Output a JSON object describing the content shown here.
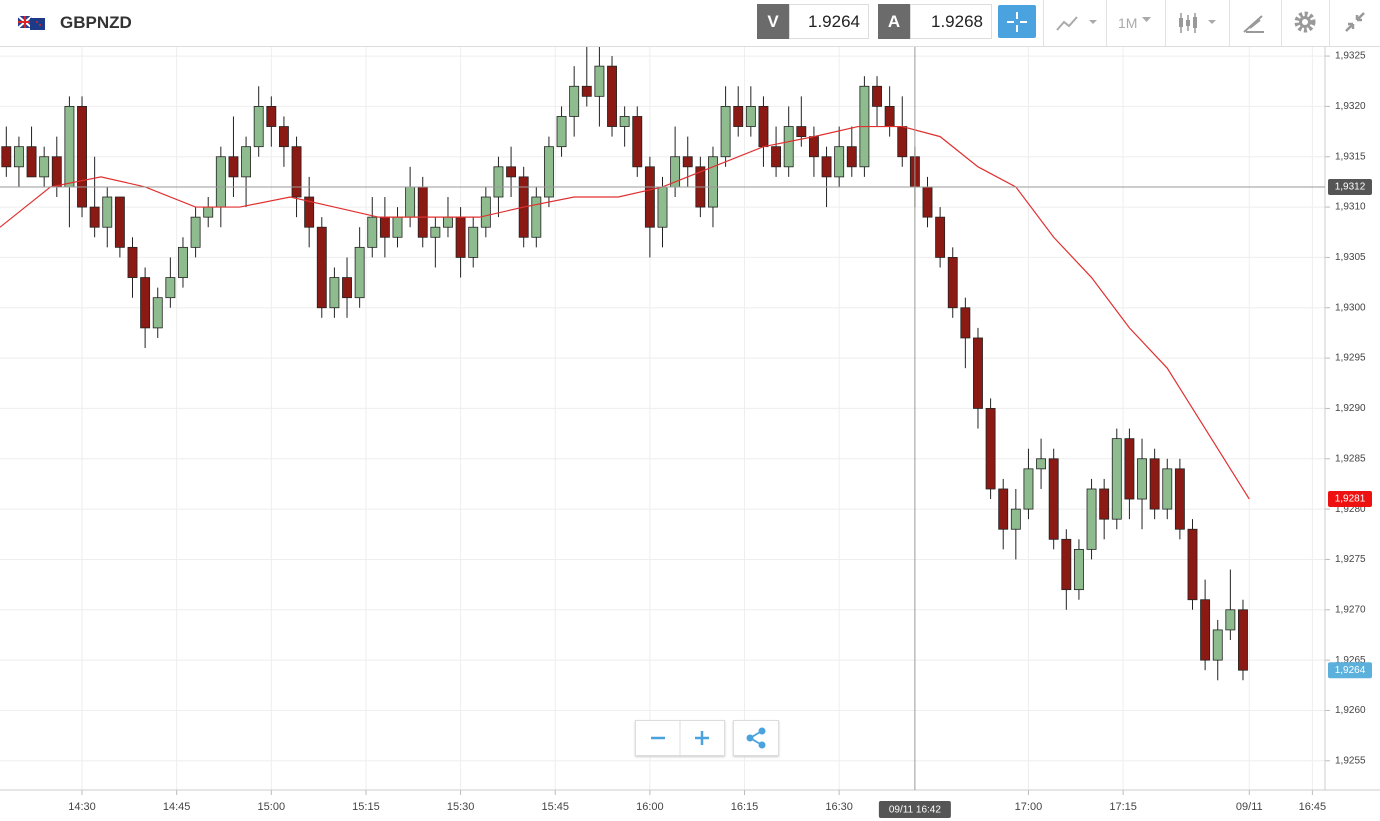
{
  "header": {
    "symbol": "GBPNZD",
    "sell_label": "V",
    "sell_price": "1.9264",
    "buy_label": "A",
    "buy_price": "1.9268",
    "timeframe": "1M"
  },
  "chart_data": {
    "type": "candlestick",
    "up_color": "#8fbc8f",
    "down_color": "#8b1a14",
    "x": [
      "14:18",
      "14:20",
      "14:22",
      "14:24",
      "14:26",
      "14:28",
      "14:30",
      "14:32",
      "14:34",
      "14:36",
      "14:38",
      "14:40",
      "14:42",
      "14:44",
      "14:46",
      "14:48",
      "14:50",
      "14:52",
      "14:54",
      "14:56",
      "14:58",
      "15:00",
      "15:02",
      "15:04",
      "15:06",
      "15:08",
      "15:10",
      "15:12",
      "15:14",
      "15:16",
      "15:18",
      "15:20",
      "15:22",
      "15:24",
      "15:26",
      "15:28",
      "15:30",
      "15:32",
      "15:34",
      "15:36",
      "15:38",
      "15:40",
      "15:42",
      "15:44",
      "15:46",
      "15:48",
      "15:50",
      "15:52",
      "15:54",
      "15:56",
      "15:58",
      "16:00",
      "16:02",
      "16:04",
      "16:06",
      "16:08",
      "16:10",
      "16:12",
      "16:14",
      "16:16",
      "16:18",
      "16:20",
      "16:22",
      "16:24",
      "16:26",
      "16:28",
      "16:30",
      "16:32",
      "16:34",
      "16:36",
      "16:38",
      "16:40",
      "16:42",
      "16:44",
      "16:46",
      "16:48",
      "16:50",
      "16:52",
      "16:54",
      "16:56",
      "16:58",
      "17:00",
      "17:02",
      "17:04",
      "17:06",
      "17:08",
      "17:10",
      "17:12",
      "17:14",
      "17:16",
      "17:18",
      "17:20",
      "17:22",
      "17:24",
      "17:26",
      "17:28",
      "17:30",
      "17:32",
      "17:34"
    ],
    "ohlc": [
      [
        1.9316,
        1.9318,
        1.9313,
        1.9314
      ],
      [
        1.9314,
        1.9317,
        1.9312,
        1.9316
      ],
      [
        1.9316,
        1.9318,
        1.9313,
        1.9313
      ],
      [
        1.9313,
        1.9316,
        1.9312,
        1.9315
      ],
      [
        1.9315,
        1.9317,
        1.9311,
        1.9312
      ],
      [
        1.9312,
        1.9321,
        1.9308,
        1.932
      ],
      [
        1.932,
        1.9321,
        1.9309,
        1.931
      ],
      [
        1.931,
        1.9315,
        1.9307,
        1.9308
      ],
      [
        1.9308,
        1.9312,
        1.9306,
        1.9311
      ],
      [
        1.9311,
        1.9311,
        1.9305,
        1.9306
      ],
      [
        1.9306,
        1.9307,
        1.9301,
        1.9303
      ],
      [
        1.9303,
        1.9304,
        1.9296,
        1.9298
      ],
      [
        1.9298,
        1.9302,
        1.9297,
        1.9301
      ],
      [
        1.9301,
        1.9305,
        1.93,
        1.9303
      ],
      [
        1.9303,
        1.9307,
        1.9302,
        1.9306
      ],
      [
        1.9306,
        1.931,
        1.9305,
        1.9309
      ],
      [
        1.9309,
        1.9311,
        1.9308,
        1.931
      ],
      [
        1.931,
        1.9316,
        1.9308,
        1.9315
      ],
      [
        1.9315,
        1.9319,
        1.9311,
        1.9313
      ],
      [
        1.9313,
        1.9317,
        1.931,
        1.9316
      ],
      [
        1.9316,
        1.9322,
        1.9315,
        1.932
      ],
      [
        1.932,
        1.9321,
        1.9316,
        1.9318
      ],
      [
        1.9318,
        1.9319,
        1.9314,
        1.9316
      ],
      [
        1.9316,
        1.9317,
        1.9309,
        1.9311
      ],
      [
        1.9311,
        1.9313,
        1.9306,
        1.9308
      ],
      [
        1.9308,
        1.9309,
        1.9299,
        1.93
      ],
      [
        1.93,
        1.9304,
        1.9299,
        1.9303
      ],
      [
        1.9303,
        1.9305,
        1.9299,
        1.9301
      ],
      [
        1.9301,
        1.9308,
        1.93,
        1.9306
      ],
      [
        1.9306,
        1.9311,
        1.9305,
        1.9309
      ],
      [
        1.9309,
        1.9311,
        1.9305,
        1.9307
      ],
      [
        1.9307,
        1.931,
        1.9306,
        1.9309
      ],
      [
        1.9309,
        1.9314,
        1.9308,
        1.9312
      ],
      [
        1.9312,
        1.9313,
        1.9306,
        1.9307
      ],
      [
        1.9307,
        1.9309,
        1.9304,
        1.9308
      ],
      [
        1.9308,
        1.9311,
        1.9307,
        1.9309
      ],
      [
        1.9309,
        1.931,
        1.9303,
        1.9305
      ],
      [
        1.9305,
        1.9309,
        1.9304,
        1.9308
      ],
      [
        1.9308,
        1.9312,
        1.9307,
        1.9311
      ],
      [
        1.9311,
        1.9315,
        1.9309,
        1.9314
      ],
      [
        1.9314,
        1.9316,
        1.9311,
        1.9313
      ],
      [
        1.9313,
        1.9314,
        1.9306,
        1.9307
      ],
      [
        1.9307,
        1.9312,
        1.9306,
        1.9311
      ],
      [
        1.9311,
        1.9317,
        1.931,
        1.9316
      ],
      [
        1.9316,
        1.932,
        1.9315,
        1.9319
      ],
      [
        1.9319,
        1.9324,
        1.9317,
        1.9322
      ],
      [
        1.9322,
        1.9326,
        1.932,
        1.9321
      ],
      [
        1.9321,
        1.9326,
        1.9318,
        1.9324
      ],
      [
        1.9324,
        1.9325,
        1.9317,
        1.9318
      ],
      [
        1.9318,
        1.932,
        1.9316,
        1.9319
      ],
      [
        1.9319,
        1.932,
        1.9313,
        1.9314
      ],
      [
        1.9314,
        1.9315,
        1.9305,
        1.9308
      ],
      [
        1.9308,
        1.9313,
        1.9306,
        1.9312
      ],
      [
        1.9312,
        1.9318,
        1.9311,
        1.9315
      ],
      [
        1.9315,
        1.9317,
        1.9312,
        1.9314
      ],
      [
        1.9314,
        1.9315,
        1.9309,
        1.931
      ],
      [
        1.931,
        1.9316,
        1.9308,
        1.9315
      ],
      [
        1.9315,
        1.9322,
        1.9314,
        1.932
      ],
      [
        1.932,
        1.9322,
        1.9317,
        1.9318
      ],
      [
        1.9318,
        1.9322,
        1.9317,
        1.932
      ],
      [
        1.932,
        1.9321,
        1.9314,
        1.9316
      ],
      [
        1.9316,
        1.9318,
        1.9313,
        1.9314
      ],
      [
        1.9314,
        1.932,
        1.9313,
        1.9318
      ],
      [
        1.9318,
        1.9321,
        1.9316,
        1.9317
      ],
      [
        1.9317,
        1.9318,
        1.9313,
        1.9315
      ],
      [
        1.9315,
        1.9316,
        1.931,
        1.9313
      ],
      [
        1.9313,
        1.9318,
        1.9312,
        1.9316
      ],
      [
        1.9316,
        1.9318,
        1.9313,
        1.9314
      ],
      [
        1.9314,
        1.9323,
        1.9313,
        1.9322
      ],
      [
        1.9322,
        1.9323,
        1.9318,
        1.932
      ],
      [
        1.932,
        1.9322,
        1.9317,
        1.9318
      ],
      [
        1.9318,
        1.9321,
        1.9314,
        1.9315
      ],
      [
        1.9315,
        1.9316,
        1.931,
        1.9312
      ],
      [
        1.9312,
        1.9313,
        1.9308,
        1.9309
      ],
      [
        1.9309,
        1.931,
        1.9304,
        1.9305
      ],
      [
        1.9305,
        1.9306,
        1.9299,
        1.93
      ],
      [
        1.93,
        1.9301,
        1.9294,
        1.9297
      ],
      [
        1.9297,
        1.9298,
        1.9288,
        1.929
      ],
      [
        1.929,
        1.9291,
        1.9281,
        1.9282
      ],
      [
        1.9282,
        1.9283,
        1.9276,
        1.9278
      ],
      [
        1.9278,
        1.9282,
        1.9275,
        1.928
      ],
      [
        1.928,
        1.9286,
        1.9279,
        1.9284
      ],
      [
        1.9284,
        1.9287,
        1.9282,
        1.9285
      ],
      [
        1.9285,
        1.9286,
        1.9276,
        1.9277
      ],
      [
        1.9277,
        1.9278,
        1.927,
        1.9272
      ],
      [
        1.9272,
        1.9277,
        1.9271,
        1.9276
      ],
      [
        1.9276,
        1.9283,
        1.9275,
        1.9282
      ],
      [
        1.9282,
        1.9283,
        1.9277,
        1.9279
      ],
      [
        1.9279,
        1.9288,
        1.9278,
        1.9287
      ],
      [
        1.9287,
        1.9288,
        1.9279,
        1.9281
      ],
      [
        1.9281,
        1.9287,
        1.9278,
        1.9285
      ],
      [
        1.9285,
        1.9286,
        1.9279,
        1.928
      ],
      [
        1.928,
        1.9285,
        1.9279,
        1.9284
      ],
      [
        1.9284,
        1.9285,
        1.9277,
        1.9278
      ],
      [
        1.9278,
        1.9279,
        1.927,
        1.9271
      ],
      [
        1.9271,
        1.9273,
        1.9264,
        1.9265
      ],
      [
        1.9265,
        1.9269,
        1.9263,
        1.9268
      ],
      [
        1.9268,
        1.9274,
        1.9267,
        1.927
      ],
      [
        1.927,
        1.9271,
        1.9263,
        1.9264
      ]
    ],
    "ma": {
      "color": "#e03030",
      "x": [
        "14:17",
        "14:25",
        "14:33",
        "14:40",
        "14:48",
        "14:55",
        "15:03",
        "15:10",
        "15:17",
        "15:25",
        "15:33",
        "15:40",
        "15:48",
        "15:55",
        "16:02",
        "16:10",
        "16:18",
        "16:26",
        "16:33",
        "16:40",
        "16:46",
        "16:52",
        "16:58",
        "17:04",
        "17:10",
        "17:16",
        "17:22",
        "17:28",
        "17:35"
      ],
      "values": [
        1.9308,
        1.9312,
        1.9313,
        1.9312,
        1.931,
        1.931,
        1.9311,
        1.931,
        1.9309,
        1.9309,
        1.9309,
        1.931,
        1.9311,
        1.9311,
        1.9312,
        1.9314,
        1.9316,
        1.9317,
        1.9318,
        1.9318,
        1.9317,
        1.9314,
        1.9312,
        1.9307,
        1.9303,
        1.9298,
        1.9294,
        1.9288,
        1.9281
      ]
    },
    "xlim": [
      "14:17",
      "17:47"
    ],
    "xticks": [
      "14:30",
      "14:45",
      "15:00",
      "15:15",
      "15:30",
      "15:45",
      "16:00",
      "16:15",
      "16:30",
      "17:00",
      "17:15",
      {
        "value": "17:35",
        "label": "09/11"
      },
      {
        "value": "17:45",
        "label": "16:45"
      }
    ],
    "ylim": [
      1.9326,
      1.92521
    ],
    "yticks": [
      {
        "value": 1.9325,
        "label": "1,9325"
      },
      {
        "value": 1.932,
        "label": "1,9320"
      },
      {
        "value": 1.9315,
        "label": "1,9315"
      },
      {
        "value": 1.931,
        "label": "1,9310"
      },
      {
        "value": 1.9305,
        "label": "1,9305"
      },
      {
        "value": 1.93,
        "label": "1,9300"
      },
      {
        "value": 1.9295,
        "label": "1,9295"
      },
      {
        "value": 1.929,
        "label": "1,9290"
      },
      {
        "value": 1.9285,
        "label": "1,9285"
      },
      {
        "value": 1.928,
        "label": "1,9280"
      },
      {
        "value": 1.9275,
        "label": "1,9275"
      },
      {
        "value": 1.927,
        "label": "1,9270"
      },
      {
        "value": 1.9265,
        "label": "1,9265"
      },
      {
        "value": 1.926,
        "label": "1,9260"
      },
      {
        "value": 1.9255,
        "label": "1,9255"
      }
    ],
    "grid": true,
    "crosshair": {
      "x": "16:42",
      "y": 1.9312,
      "x_label": "09/11 16:42",
      "y_label": "1,9312",
      "color": "#555555"
    },
    "price_markers": [
      {
        "value": 1.9281,
        "label": "1,9281",
        "color": "#ee1111"
      },
      {
        "value": 1.9264,
        "label": "1,9264",
        "color": "#5bb0dc"
      }
    ]
  }
}
